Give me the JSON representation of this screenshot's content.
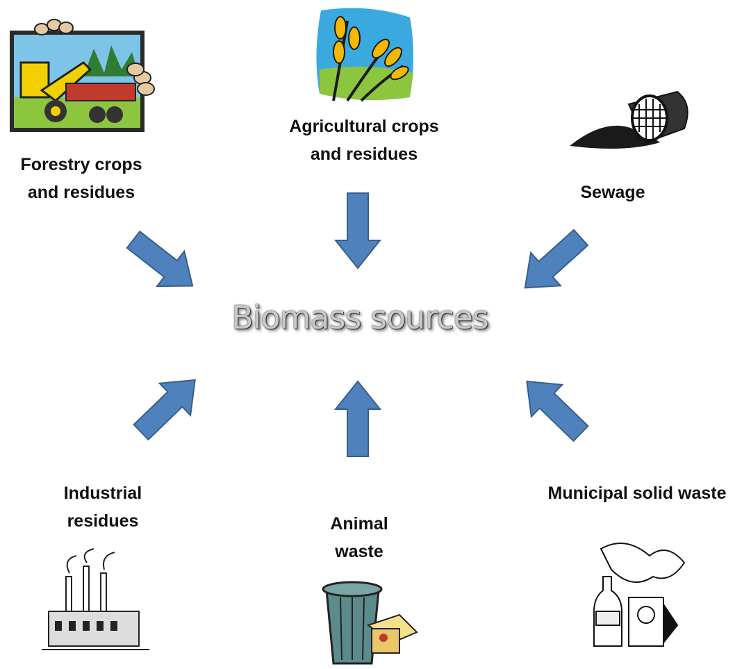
{
  "title": "Biomass sources",
  "nodes": [
    {
      "label": "Forestry crops\nand residues"
    },
    {
      "label": "Agricultural crops\nand residues"
    },
    {
      "label": "Sewage"
    },
    {
      "label": "Industrial\nresidues"
    },
    {
      "label": "Animal\nwaste"
    },
    {
      "label": "Municipal solid waste"
    }
  ]
}
